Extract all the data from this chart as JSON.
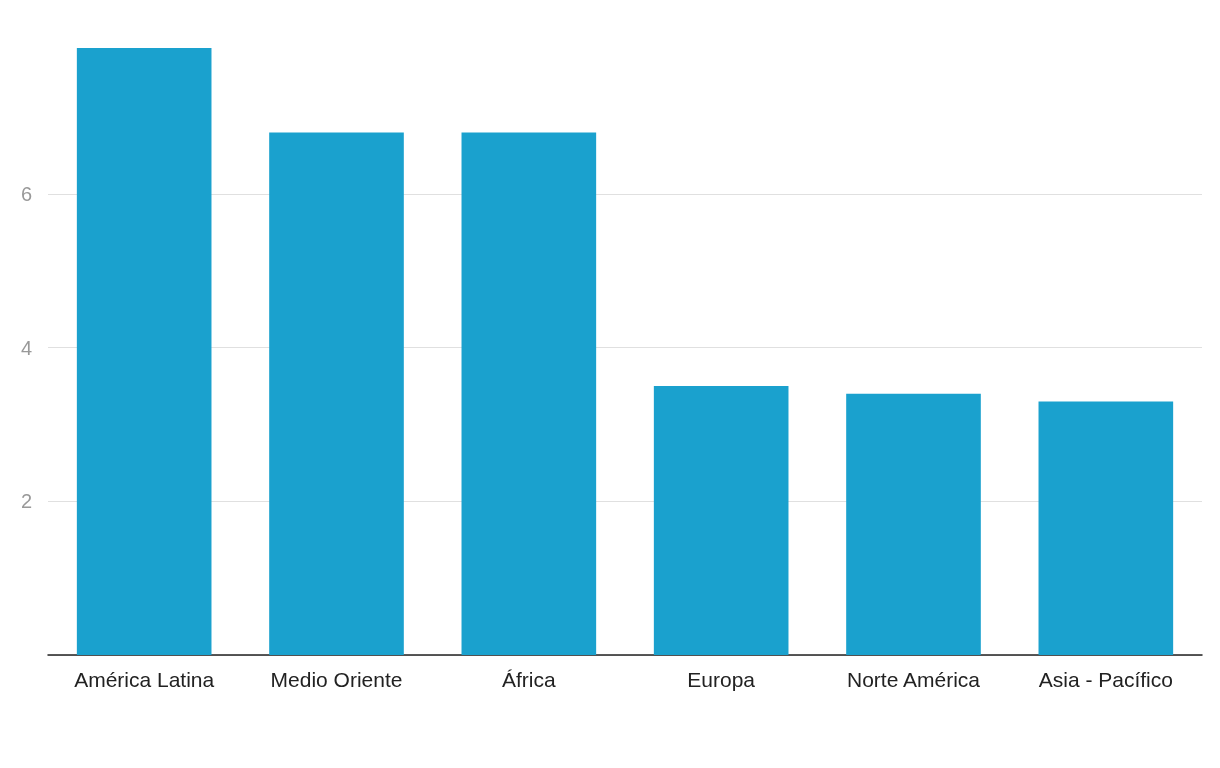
{
  "chart_data": {
    "type": "bar",
    "categories": [
      "América Latina",
      "Medio Oriente",
      "África",
      "Europa",
      "Norte América",
      "Asia - Pacífico"
    ],
    "values": [
      7.9,
      6.8,
      6.8,
      3.5,
      3.4,
      3.3
    ],
    "color": "#1aa1ce",
    "ylim": [
      0,
      7.9
    ],
    "yticks": [
      {
        "value": 0,
        "label": null
      },
      2,
      4,
      6
    ],
    "grid": "y"
  }
}
